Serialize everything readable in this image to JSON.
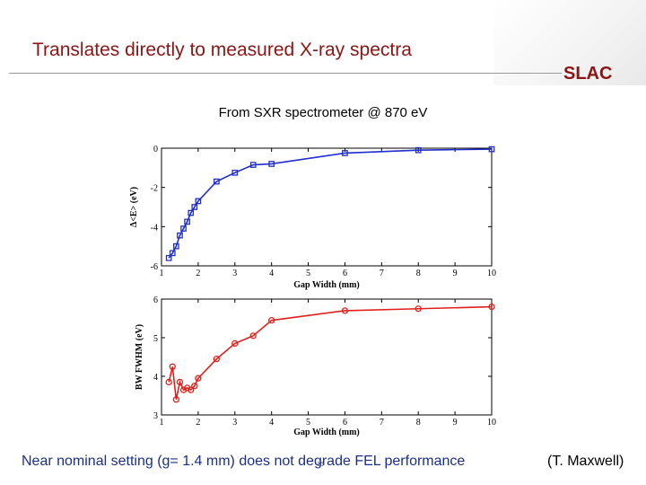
{
  "slide": {
    "title": "Translates directly to measured X-ray spectra",
    "logo_text": "SLAC",
    "subtitle": "From SXR spectrometer @ 870 eV",
    "footer_note": "Near nominal setting (g= 1.4 mm) does not degrade FEL performance",
    "credit": "(T. Maxwell)",
    "page_number": "16"
  },
  "colors": {
    "title": "#8c1515",
    "footer_note": "#1a2f8a",
    "series_top": "#1f2ecc",
    "series_bottom": "#e0201a"
  },
  "chart_data": [
    {
      "type": "line",
      "xlabel": "Gap Width (mm)",
      "ylabel": "Δ<E> (eV)",
      "xlim": [
        1,
        10
      ],
      "ylim": [
        -6,
        0
      ],
      "x_ticks": [
        "1",
        "2",
        "3",
        "4",
        "5",
        "6",
        "7",
        "8",
        "9",
        "10"
      ],
      "y_ticks": [
        "-6",
        "-4",
        "-2",
        "0"
      ],
      "marker": "square",
      "grid": false,
      "series": [
        {
          "x": [
            1.2,
            1.3,
            1.4,
            1.5,
            1.6,
            1.7,
            1.8,
            1.9,
            2.0,
            2.5,
            3.0,
            3.5,
            4.0,
            6.0,
            8.0,
            10.0
          ],
          "y": [
            -5.6,
            -5.35,
            -5.0,
            -4.45,
            -4.1,
            -3.75,
            -3.3,
            -3.0,
            -2.7,
            -1.7,
            -1.25,
            -0.85,
            -0.8,
            -0.25,
            -0.1,
            -0.05
          ]
        }
      ]
    },
    {
      "type": "line",
      "xlabel": "Gap Width (mm)",
      "ylabel": "BW FWHM (eV)",
      "xlim": [
        1,
        10
      ],
      "ylim": [
        3,
        6
      ],
      "x_ticks": [
        "1",
        "2",
        "3",
        "4",
        "5",
        "6",
        "7",
        "8",
        "9",
        "10"
      ],
      "y_ticks": [
        "3",
        "4",
        "5",
        "6"
      ],
      "marker": "circle",
      "grid": false,
      "series": [
        {
          "x": [
            1.2,
            1.3,
            1.4,
            1.5,
            1.6,
            1.7,
            1.8,
            1.9,
            2.0,
            2.5,
            3.0,
            3.5,
            4.0,
            6.0,
            8.0,
            10.0
          ],
          "y": [
            3.85,
            4.25,
            3.4,
            3.85,
            3.65,
            3.7,
            3.65,
            3.75,
            3.95,
            4.45,
            4.85,
            5.05,
            5.45,
            5.7,
            5.75,
            5.8
          ]
        }
      ]
    }
  ]
}
